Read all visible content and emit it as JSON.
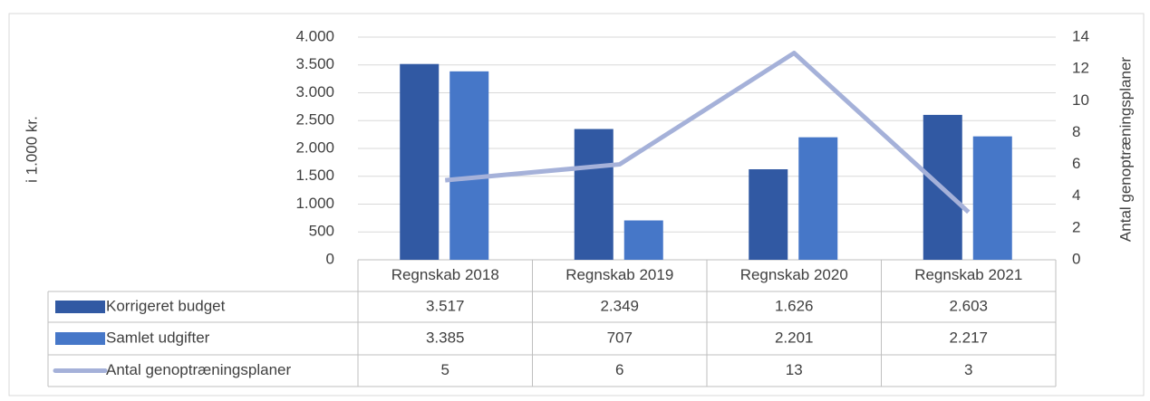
{
  "chart_data": {
    "type": "bar",
    "categories": [
      "Regnskab 2018",
      "Regnskab 2019",
      "Regnskab 2020",
      "Regnskab 2021"
    ],
    "y_label": "i 1.000 kr.",
    "y2_label": "Antal genoptræningsplaner",
    "ylim": [
      0,
      4000
    ],
    "yticks": [
      0,
      {
        "value": 500,
        "label": "500"
      },
      {
        "value": 1000,
        "label": "1.000"
      },
      {
        "value": 1500,
        "label": "1.500"
      },
      {
        "value": 2000,
        "label": "2.000"
      },
      {
        "value": 2500,
        "label": "2.500"
      },
      {
        "value": 3000,
        "label": "3.000"
      },
      {
        "value": 3500,
        "label": "3.500"
      },
      {
        "value": 4000,
        "label": "4.000"
      }
    ],
    "y2lim": [
      0,
      14
    ],
    "y2ticks": [
      0,
      2,
      4,
      6,
      8,
      10,
      12,
      14
    ],
    "grid": true,
    "series": [
      {
        "name": "Korrigeret budget",
        "type": "bar",
        "color": "#3159a3",
        "values": [
          3517,
          2349,
          1626,
          2603
        ],
        "value_labels": [
          "3.517",
          "2.349",
          "1.626",
          "2.603"
        ]
      },
      {
        "name": "Samlet udgifter",
        "type": "bar",
        "color": "#4677c8",
        "values": [
          3385,
          707,
          2201,
          2217
        ],
        "value_labels": [
          "3.385",
          "707",
          "2.201",
          "2.217"
        ]
      },
      {
        "name": "Antal genoptræningsplaner",
        "type": "line",
        "axis": "y2",
        "color": "#a5b1d9",
        "values": [
          5,
          6,
          13,
          3
        ]
      }
    ]
  }
}
